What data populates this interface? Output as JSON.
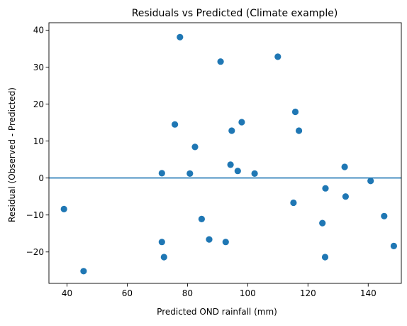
{
  "chart_data": {
    "type": "scatter",
    "title": "Residuals vs Predicted (Climate example)",
    "xlabel": "Predicted OND rainfall (mm)",
    "ylabel": "Residual (Observed - Predicted)",
    "xlim": [
      34,
      151
    ],
    "ylim": [
      -28.5,
      42
    ],
    "xticks": [
      40,
      60,
      80,
      100,
      120,
      140
    ],
    "yticks": [
      -20,
      -10,
      0,
      10,
      20,
      30,
      40
    ],
    "grid": false,
    "hline": 0,
    "colors": {
      "point": "#1f77b4",
      "line": "#1f77b4",
      "axis": "#000000"
    },
    "points": [
      {
        "x": 39.0,
        "y": -8.4
      },
      {
        "x": 45.5,
        "y": -25.2
      },
      {
        "x": 71.5,
        "y": 1.3
      },
      {
        "x": 71.5,
        "y": -17.3
      },
      {
        "x": 72.2,
        "y": -21.4
      },
      {
        "x": 75.8,
        "y": 14.5
      },
      {
        "x": 77.5,
        "y": 38.1
      },
      {
        "x": 80.8,
        "y": 1.2
      },
      {
        "x": 82.5,
        "y": 8.4
      },
      {
        "x": 84.7,
        "y": -11.1
      },
      {
        "x": 87.2,
        "y": -16.6
      },
      {
        "x": 91.0,
        "y": 31.5
      },
      {
        "x": 92.7,
        "y": -17.3
      },
      {
        "x": 94.3,
        "y": 3.6
      },
      {
        "x": 94.7,
        "y": 12.8
      },
      {
        "x": 96.7,
        "y": 1.9
      },
      {
        "x": 98.0,
        "y": 15.1
      },
      {
        "x": 102.3,
        "y": 1.2
      },
      {
        "x": 110.0,
        "y": 32.8
      },
      {
        "x": 115.2,
        "y": -6.7
      },
      {
        "x": 115.8,
        "y": 17.9
      },
      {
        "x": 117.0,
        "y": 12.8
      },
      {
        "x": 124.8,
        "y": -12.2
      },
      {
        "x": 125.7,
        "y": -21.4
      },
      {
        "x": 125.8,
        "y": -2.8
      },
      {
        "x": 132.2,
        "y": 3.0
      },
      {
        "x": 132.5,
        "y": -5.0
      },
      {
        "x": 140.8,
        "y": -0.8
      },
      {
        "x": 145.3,
        "y": -10.3
      },
      {
        "x": 148.5,
        "y": -18.4
      }
    ]
  }
}
